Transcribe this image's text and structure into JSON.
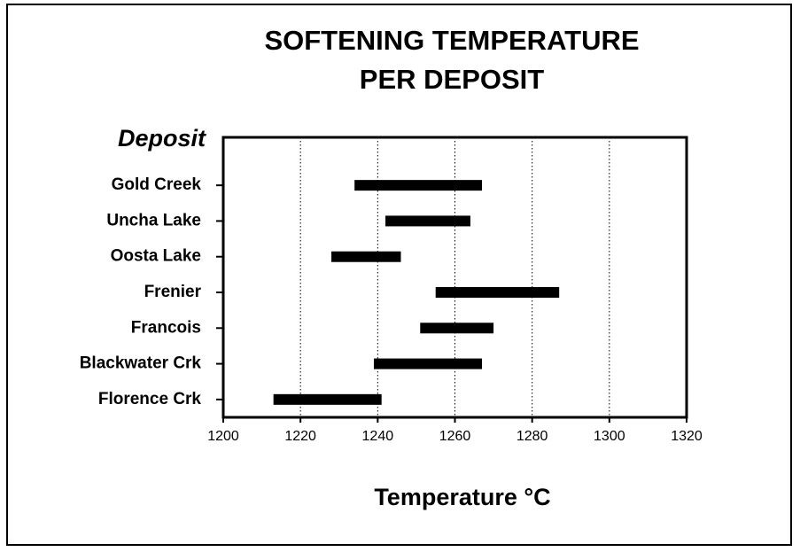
{
  "chart_data": {
    "type": "range-bar",
    "title": [
      "SOFTENING TEMPERATURE",
      "PER DEPOSIT"
    ],
    "y_label": "Deposit",
    "x_label": "Temperature °C",
    "categories": [
      "Gold Creek",
      "Uncha Lake",
      "Oosta Lake",
      "Frenier",
      "Francois",
      "Blackwater Crk",
      "Florence Crk"
    ],
    "low": [
      1234,
      1242,
      1228,
      1255,
      1251,
      1239,
      1213
    ],
    "high": [
      1267,
      1264,
      1246,
      1287,
      1270,
      1267,
      1241
    ],
    "color": "#000000",
    "xlim": [
      1200,
      1320
    ],
    "xticks": [
      1200,
      1220,
      1240,
      1260,
      1280,
      1300,
      1320
    ],
    "grid": true
  }
}
